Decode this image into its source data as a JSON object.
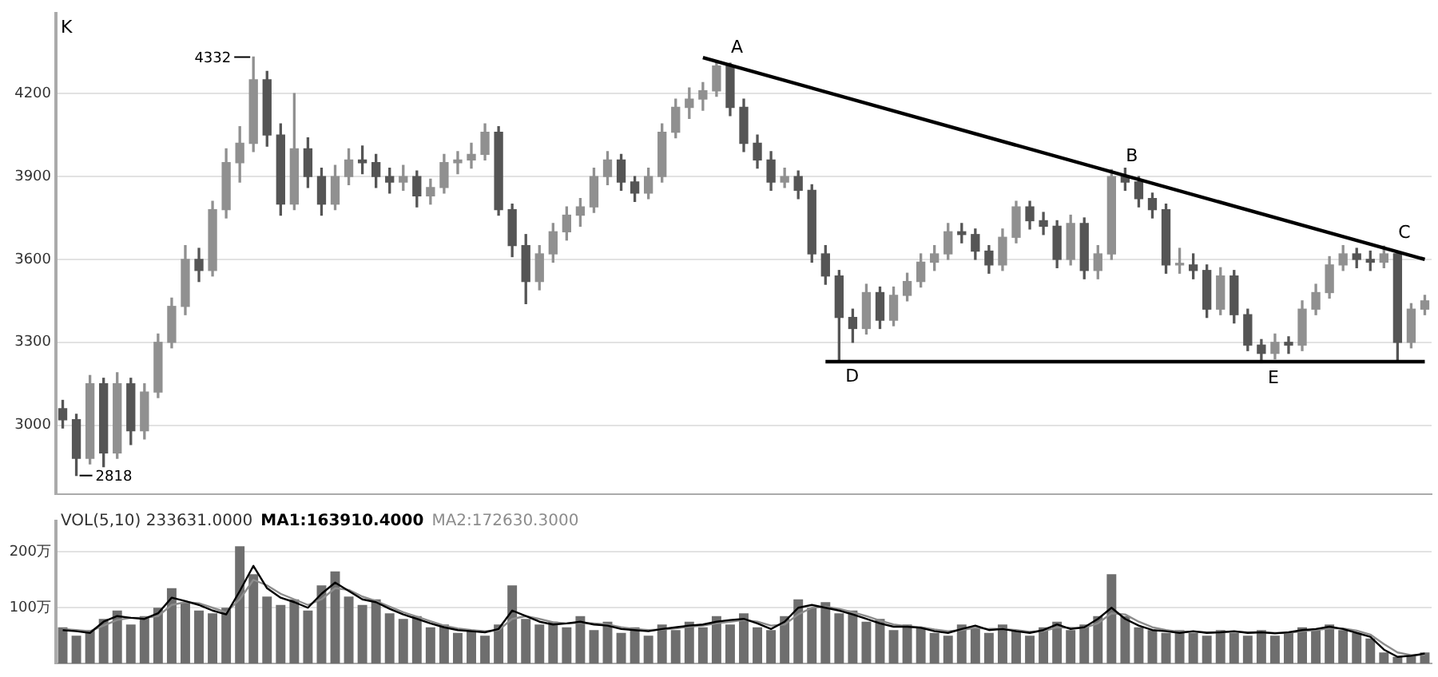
{
  "chart_data": [
    {
      "type": "candlestick",
      "colors": [
        "#555555",
        "#555555",
        "#909090",
        "#555555",
        "#909090",
        "#555555",
        "#909090",
        "#909090",
        "#909090",
        "#909090",
        "#555555",
        "#909090",
        "#909090",
        "#909090",
        "#909090",
        "#555555",
        "#555555",
        "#909090",
        "#555555",
        "#555555",
        "#909090",
        "#909090",
        "#555555",
        "#555555",
        "#555555",
        "#909090",
        "#555555",
        "#909090",
        "#909090",
        "#909090",
        "#909090",
        "#909090",
        "#555555",
        "#555555",
        "#555555",
        "#909090",
        "#909090",
        "#909090",
        "#909090",
        "#909090",
        "#909090",
        "#555555",
        "#555555",
        "#909090",
        "#909090",
        "#909090",
        "#909090",
        "#909090",
        "#909090",
        "#555555",
        "#555555",
        "#555555",
        "#555555",
        "#909090",
        "#555555",
        "#555555",
        "#555555",
        "#555555",
        "#555555",
        "#909090",
        "#555555",
        "#909090",
        "#909090",
        "#909090",
        "#909090",
        "#909090",
        "#555555",
        "#555555",
        "#555555",
        "#909090",
        "#909090",
        "#555555",
        "#555555",
        "#555555",
        "#909090",
        "#555555",
        "#909090",
        "#909090",
        "#555555",
        "#555555",
        "#555555",
        "#555555",
        "#909090",
        "#555555",
        "#555555",
        "#909090",
        "#555555",
        "#555555",
        "#555555",
        "#909090",
        "#555555",
        "#909090",
        "#909090",
        "#909090",
        "#909090",
        "#555555",
        "#555555",
        "#909090",
        "#555555",
        "#909090",
        "#909090"
      ],
      "categories": [
        null,
        null,
        null,
        null,
        null,
        null,
        null,
        null,
        null,
        null,
        null,
        null,
        null,
        null,
        null,
        null,
        null,
        null,
        null,
        null,
        null,
        null,
        null,
        null,
        null,
        null,
        null,
        null,
        null,
        null,
        null,
        null,
        null,
        null,
        null,
        null,
        null,
        null,
        null,
        null,
        null,
        null,
        null,
        null,
        null,
        null,
        null,
        null,
        null,
        null,
        null,
        null,
        null,
        null,
        null,
        null,
        null,
        null,
        null,
        null,
        null,
        null,
        null,
        null,
        null,
        null,
        null,
        null,
        null,
        null,
        null,
        null,
        null,
        null,
        null,
        null,
        null,
        null,
        null,
        null,
        null,
        null,
        null,
        null,
        null,
        null,
        null,
        null,
        null,
        null,
        null,
        null,
        null,
        null,
        null,
        null,
        null,
        null,
        null,
        null,
        null
      ],
      "ohlc": [
        [
          3060,
          3090,
          2990,
          3020
        ],
        [
          3020,
          3040,
          2818,
          2880
        ],
        [
          2880,
          3180,
          2860,
          3150
        ],
        [
          3150,
          3170,
          2850,
          2900
        ],
        [
          2900,
          3190,
          2880,
          3150
        ],
        [
          3150,
          3170,
          2930,
          2980
        ],
        [
          2980,
          3150,
          2950,
          3120
        ],
        [
          3120,
          3330,
          3100,
          3300
        ],
        [
          3300,
          3460,
          3280,
          3430
        ],
        [
          3430,
          3650,
          3400,
          3600
        ],
        [
          3600,
          3640,
          3520,
          3560
        ],
        [
          3560,
          3810,
          3540,
          3780
        ],
        [
          3780,
          4000,
          3750,
          3950
        ],
        [
          3950,
          4080,
          3880,
          4020
        ],
        [
          4020,
          4332,
          3990,
          4250
        ],
        [
          4250,
          4280,
          4010,
          4050
        ],
        [
          4050,
          4090,
          3760,
          3800
        ],
        [
          3800,
          4200,
          3780,
          4000
        ],
        [
          4000,
          4040,
          3860,
          3900
        ],
        [
          3900,
          3930,
          3760,
          3800
        ],
        [
          3800,
          3940,
          3780,
          3900
        ],
        [
          3900,
          4000,
          3870,
          3960
        ],
        [
          3960,
          4010,
          3910,
          3950
        ],
        [
          3950,
          3980,
          3860,
          3900
        ],
        [
          3900,
          3930,
          3840,
          3880
        ],
        [
          3880,
          3940,
          3850,
          3900
        ],
        [
          3900,
          3920,
          3790,
          3830
        ],
        [
          3830,
          3890,
          3800,
          3860
        ],
        [
          3860,
          3980,
          3840,
          3950
        ],
        [
          3950,
          3990,
          3910,
          3960
        ],
        [
          3960,
          4020,
          3930,
          3980
        ],
        [
          3980,
          4090,
          3960,
          4060
        ],
        [
          4060,
          4080,
          3760,
          3780
        ],
        [
          3780,
          3800,
          3610,
          3650
        ],
        [
          3650,
          3690,
          3440,
          3520
        ],
        [
          3520,
          3650,
          3490,
          3620
        ],
        [
          3620,
          3730,
          3590,
          3700
        ],
        [
          3700,
          3790,
          3670,
          3760
        ],
        [
          3760,
          3820,
          3720,
          3790
        ],
        [
          3790,
          3930,
          3770,
          3900
        ],
        [
          3900,
          3990,
          3870,
          3960
        ],
        [
          3960,
          3980,
          3850,
          3880
        ],
        [
          3880,
          3900,
          3810,
          3840
        ],
        [
          3840,
          3930,
          3820,
          3900
        ],
        [
          3900,
          4090,
          3880,
          4060
        ],
        [
          4060,
          4180,
          4040,
          4150
        ],
        [
          4150,
          4220,
          4110,
          4180
        ],
        [
          4180,
          4240,
          4140,
          4210
        ],
        [
          4210,
          4320,
          4190,
          4300
        ],
        [
          4300,
          4310,
          4120,
          4150
        ],
        [
          4150,
          4180,
          3990,
          4020
        ],
        [
          4020,
          4050,
          3930,
          3960
        ],
        [
          3960,
          3990,
          3850,
          3880
        ],
        [
          3880,
          3930,
          3860,
          3900
        ],
        [
          3900,
          3920,
          3820,
          3850
        ],
        [
          3850,
          3870,
          3590,
          3620
        ],
        [
          3620,
          3650,
          3510,
          3540
        ],
        [
          3540,
          3560,
          3232,
          3390
        ],
        [
          3390,
          3420,
          3300,
          3350
        ],
        [
          3350,
          3510,
          3330,
          3480
        ],
        [
          3480,
          3500,
          3350,
          3380
        ],
        [
          3380,
          3500,
          3360,
          3470
        ],
        [
          3470,
          3550,
          3450,
          3520
        ],
        [
          3520,
          3620,
          3500,
          3590
        ],
        [
          3590,
          3650,
          3560,
          3620
        ],
        [
          3620,
          3730,
          3600,
          3700
        ],
        [
          3700,
          3730,
          3660,
          3690
        ],
        [
          3690,
          3710,
          3600,
          3630
        ],
        [
          3630,
          3650,
          3550,
          3580
        ],
        [
          3580,
          3710,
          3560,
          3680
        ],
        [
          3680,
          3810,
          3660,
          3790
        ],
        [
          3790,
          3810,
          3710,
          3740
        ],
        [
          3740,
          3770,
          3690,
          3720
        ],
        [
          3720,
          3740,
          3570,
          3600
        ],
        [
          3600,
          3760,
          3580,
          3730
        ],
        [
          3730,
          3750,
          3530,
          3560
        ],
        [
          3560,
          3650,
          3530,
          3620
        ],
        [
          3620,
          3925,
          3600,
          3900
        ],
        [
          3900,
          3930,
          3850,
          3880
        ],
        [
          3880,
          3900,
          3790,
          3820
        ],
        [
          3820,
          3840,
          3750,
          3780
        ],
        [
          3780,
          3800,
          3550,
          3580
        ],
        [
          3580,
          3640,
          3550,
          3580
        ],
        [
          3580,
          3620,
          3530,
          3560
        ],
        [
          3560,
          3580,
          3390,
          3420
        ],
        [
          3420,
          3570,
          3400,
          3540
        ],
        [
          3540,
          3560,
          3370,
          3400
        ],
        [
          3400,
          3420,
          3270,
          3290
        ],
        [
          3290,
          3310,
          3226,
          3260
        ],
        [
          3260,
          3330,
          3240,
          3300
        ],
        [
          3300,
          3320,
          3260,
          3290
        ],
        [
          3290,
          3450,
          3270,
          3420
        ],
        [
          3420,
          3510,
          3400,
          3480
        ],
        [
          3480,
          3610,
          3460,
          3580
        ],
        [
          3580,
          3650,
          3560,
          3620
        ],
        [
          3620,
          3640,
          3570,
          3600
        ],
        [
          3600,
          3630,
          3560,
          3590
        ],
        [
          3590,
          3648,
          3570,
          3620
        ],
        [
          3620,
          3630,
          3236,
          3300
        ],
        [
          3300,
          3440,
          3280,
          3420
        ],
        [
          3420,
          3470,
          3400,
          3450
        ]
      ],
      "series": [
        {
          "type": "line",
          "color": "#000000",
          "values": [
            null,
            null,
            null,
            null,
            null,
            null,
            null,
            null,
            null,
            null,
            null,
            null,
            null,
            null,
            null,
            null,
            null,
            null,
            null,
            null,
            null,
            null,
            null,
            null,
            null,
            null,
            null,
            null,
            null,
            null,
            null,
            null,
            null,
            null,
            null,
            null,
            null,
            null,
            null,
            null,
            null,
            null,
            null,
            null,
            null,
            null,
            null,
            4330,
            null,
            null,
            null,
            null,
            null,
            null,
            null,
            null,
            null,
            null,
            null,
            null,
            null,
            null,
            null,
            null,
            null,
            null,
            null,
            null,
            null,
            null,
            null,
            null,
            null,
            null,
            null,
            null,
            null,
            null,
            null,
            null,
            null,
            null,
            null,
            null,
            null,
            null,
            null,
            null,
            null,
            null,
            null,
            null,
            null,
            null,
            null,
            null,
            null,
            null,
            null,
            null,
            3600
          ]
        },
        {
          "type": "line",
          "color": "#000000",
          "values": [
            null,
            null,
            null,
            null,
            null,
            null,
            null,
            null,
            null,
            null,
            null,
            null,
            null,
            null,
            null,
            null,
            null,
            null,
            null,
            null,
            null,
            null,
            null,
            null,
            null,
            null,
            null,
            null,
            null,
            null,
            null,
            null,
            null,
            null,
            null,
            null,
            null,
            null,
            null,
            null,
            null,
            null,
            null,
            null,
            null,
            null,
            null,
            null,
            null,
            null,
            null,
            null,
            null,
            null,
            null,
            null,
            3230,
            null,
            null,
            null,
            null,
            null,
            null,
            null,
            null,
            null,
            null,
            null,
            null,
            null,
            null,
            null,
            null,
            null,
            null,
            null,
            null,
            null,
            null,
            null,
            null,
            null,
            null,
            null,
            null,
            null,
            null,
            null,
            null,
            null,
            null,
            null,
            null,
            null,
            null,
            null,
            null,
            null,
            null,
            null,
            3230
          ]
        }
      ],
      "ylim": [
        2750,
        4490
      ],
      "yticks": [
        3000,
        3300,
        3600,
        3900,
        4200
      ],
      "grid": "y",
      "tick_labels": "y",
      "annotations": [
        "K",
        "4332",
        "2818",
        {
          "text": "A",
          "y": 4320
        },
        {
          "text": "B",
          "y": 3925
        },
        {
          "text": "C",
          "y": 3648
        },
        {
          "text": "D",
          "y": 3232
        },
        {
          "text": "E",
          "y": 3226
        }
      ]
    },
    {
      "type": "bar",
      "title": "VOL(5,10) 233631.0000",
      "legend": "top left",
      "categories": [
        null,
        null,
        null,
        null,
        null,
        null,
        null,
        null,
        null,
        null,
        null,
        null,
        null,
        null,
        null,
        null,
        null,
        null,
        null,
        null,
        null,
        null,
        null,
        null,
        null,
        null,
        null,
        null,
        null,
        null,
        null,
        null,
        null,
        null,
        null,
        null,
        null,
        null,
        null,
        null,
        null,
        null,
        null,
        null,
        null,
        null,
        null,
        null,
        null,
        null,
        null,
        null,
        null,
        null,
        null,
        null,
        null,
        null,
        null,
        null,
        null,
        null,
        null,
        null,
        null,
        null,
        null,
        null,
        null,
        null,
        null,
        null,
        null,
        null,
        null,
        null,
        null,
        null,
        null,
        null,
        null,
        null,
        null,
        null,
        null,
        null,
        null,
        null,
        null,
        null,
        null,
        null,
        null,
        null,
        null,
        null,
        null,
        null,
        null,
        null,
        null
      ],
      "series": [
        {
          "type": "bar",
          "color": "#6e6e6e",
          "values": [
            65,
            50,
            60,
            80,
            95,
            70,
            85,
            100,
            135,
            110,
            95,
            90,
            100,
            210,
            160,
            120,
            105,
            115,
            95,
            140,
            165,
            120,
            105,
            115,
            90,
            80,
            85,
            65,
            70,
            55,
            60,
            50,
            70,
            140,
            80,
            70,
            75,
            65,
            85,
            60,
            75,
            55,
            65,
            50,
            70,
            60,
            75,
            65,
            85,
            70,
            90,
            65,
            60,
            85,
            115,
            100,
            110,
            90,
            95,
            75,
            80,
            60,
            70,
            65,
            55,
            50,
            70,
            65,
            55,
            70,
            60,
            50,
            65,
            75,
            60,
            70,
            85,
            160,
            85,
            65,
            60,
            55,
            60,
            55,
            50,
            60,
            55,
            50,
            60,
            50,
            55,
            65,
            60,
            70,
            60,
            55,
            45,
            20,
            12,
            15,
            20
          ]
        },
        {
          "type": "line",
          "name": "MA1:163910.4000",
          "color": "#000000",
          "values": [
            60,
            58,
            55,
            75,
            85,
            82,
            80,
            90,
            118,
            112,
            105,
            95,
            88,
            130,
            175,
            135,
            118,
            110,
            100,
            125,
            145,
            130,
            115,
            110,
            98,
            88,
            80,
            72,
            65,
            60,
            58,
            56,
            62,
            95,
            85,
            75,
            70,
            72,
            75,
            70,
            68,
            62,
            60,
            58,
            62,
            65,
            68,
            70,
            75,
            78,
            80,
            72,
            62,
            75,
            100,
            105,
            100,
            95,
            88,
            80,
            72,
            66,
            66,
            64,
            58,
            55,
            62,
            68,
            60,
            62,
            58,
            55,
            60,
            70,
            62,
            65,
            80,
            100,
            80,
            68,
            60,
            58,
            55,
            58,
            55,
            56,
            58,
            55,
            56,
            54,
            56,
            60,
            62,
            66,
            62,
            55,
            48,
            25,
            12,
            14,
            18
          ]
        },
        {
          "type": "line",
          "name": "MA2:172630.3000",
          "color": "#8c8c8c",
          "values": [
            62,
            60,
            58,
            68,
            78,
            82,
            82,
            85,
            105,
            110,
            108,
            100,
            92,
            115,
            150,
            140,
            125,
            115,
            105,
            115,
            135,
            132,
            120,
            112,
            102,
            92,
            84,
            76,
            68,
            63,
            60,
            58,
            60,
            80,
            85,
            80,
            74,
            72,
            73,
            72,
            70,
            65,
            62,
            60,
            61,
            63,
            66,
            68,
            72,
            75,
            78,
            75,
            68,
            70,
            88,
            100,
            102,
            98,
            92,
            85,
            77,
            70,
            67,
            65,
            61,
            58,
            60,
            64,
            62,
            62,
            60,
            57,
            58,
            65,
            64,
            64,
            72,
            90,
            88,
            75,
            65,
            60,
            57,
            57,
            56,
            56,
            57,
            56,
            56,
            55,
            55,
            58,
            60,
            63,
            63,
            59,
            52,
            35,
            20,
            15,
            16
          ]
        }
      ],
      "ylim": [
        0,
        255
      ],
      "yticks": [
        {
          "value": 100,
          "label": "100万"
        },
        {
          "value": 200,
          "label": "200万"
        }
      ],
      "grid": "y",
      "tick_labels": "y"
    }
  ]
}
